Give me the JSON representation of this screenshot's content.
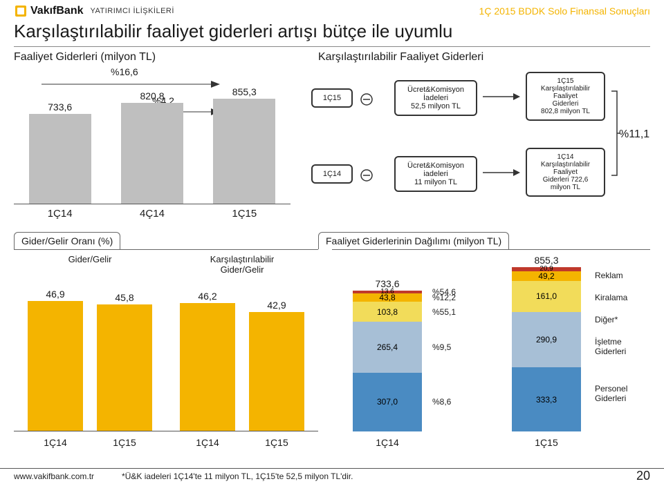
{
  "header": {
    "brand": "VakıfBank",
    "sub": "YATIRIMCI İLİŞKİLERİ",
    "right": "1Ç 2015 BDDK Solo Finansal Sonuçları"
  },
  "title": "Karşılaştırılabilir faaliyet giderleri artışı bütçe ile uyumlu",
  "chart1": {
    "title": "Faaliyet Giderleri (milyon TL)",
    "growth_top": "%16,6",
    "growth_mid": "%4,2",
    "bar_color": "#bfbfbf",
    "categories": [
      "1Ç14",
      "4Ç14",
      "1Ç15"
    ],
    "values": [
      733.6,
      820.8,
      855.3
    ],
    "value_labels": [
      "733,6",
      "820,8",
      "855,3"
    ],
    "y_max": 900
  },
  "flow": {
    "title": "Karşılaştırılabilir Faaliyet Giderleri",
    "pct": "%11,1",
    "row1": {
      "a": "1Ç15",
      "b_line1": "Ücret&Komisyon",
      "b_line2": "İadeleri",
      "b_line3": "52,5 milyon TL",
      "c_line0": "1Ç15",
      "c_line1": "Karşılaştırılabilir",
      "c_line2": "Faaliyet",
      "c_line3": "Giderleri",
      "c_line4": "802,8 milyon TL"
    },
    "row2": {
      "a": "1Ç14",
      "b_line1": "Ücret&Komisyon",
      "b_line2": "iadeleri",
      "b_line3": "11 milyon TL",
      "c_line0": "1Ç14",
      "c_line1": "Karşılaştırılabilir",
      "c_line2": "Faaliyet",
      "c_line3": "Giderleri 722,6",
      "c_line4": "milyon TL"
    }
  },
  "ratio": {
    "title": "Gider/Gelir Oranı (%)",
    "group1_label": "Gider/Gelir",
    "group2_label_l1": "Karşılaştırılabilir",
    "group2_label_l2": "Gider/Gelir",
    "bar_color": "#f4b400",
    "y_max": 50,
    "group1": {
      "cats": [
        "1Ç14",
        "1Ç15"
      ],
      "vals": [
        46.9,
        45.8
      ],
      "labels": [
        "46,9",
        "45,8"
      ]
    },
    "group2": {
      "cats": [
        "1Ç14",
        "1Ç15"
      ],
      "vals": [
        46.2,
        42.9
      ],
      "labels": [
        "46,2",
        "42,9"
      ]
    }
  },
  "stacked": {
    "title": "Faaliyet Giderlerinin Dağılımı (milyon TL)",
    "cats": [
      "1Ç14",
      "1Ç15"
    ],
    "totals": [
      "733,6",
      "855,3"
    ],
    "y_max": 900,
    "colors": {
      "personel": "#4a8bc2",
      "isletme": "#a7bfd6",
      "diger": "#f2dc5a",
      "kiralama": "#f4b400",
      "reklam": "#c0392b"
    },
    "col1": {
      "personel": {
        "v": 307.0,
        "label": "307,0"
      },
      "isletme": {
        "v": 265.4,
        "label": "265,4"
      },
      "diger": {
        "v": 103.8,
        "label": "103,8"
      },
      "kiralama": {
        "v": 43.8,
        "label": "43,8"
      },
      "reklam": {
        "v": 13.6,
        "label": "13,6"
      }
    },
    "col2": {
      "personel": {
        "v": 333.3,
        "label": "333,3"
      },
      "isletme": {
        "v": 290.9,
        "label": "290,9"
      },
      "diger": {
        "v": 161.0,
        "label": "161,0"
      },
      "kiralama": {
        "v": 49.2,
        "label": "49,2"
      },
      "reklam": {
        "v": 20.9,
        "label": "20,9"
      }
    },
    "pct": {
      "reklam": "%54,6",
      "kiralama": "%12,2",
      "diger": "%55,1",
      "isletme": "%9,5",
      "personel": "%8,6"
    },
    "legend": {
      "reklam": "Reklam",
      "kiralama": "Kiralama",
      "diger": "Diğer*",
      "isletme_l1": "İşletme",
      "isletme_l2": "Giderleri",
      "personel_l1": "Personel",
      "personel_l2": "Giderleri"
    }
  },
  "footer": {
    "url": "www.vakifbank.com.tr",
    "note": "*Ü&K iadeleri 1Ç14'te 11 milyon TL, 1Ç15'te 52,5 milyon TL'dir.",
    "page": "20"
  }
}
